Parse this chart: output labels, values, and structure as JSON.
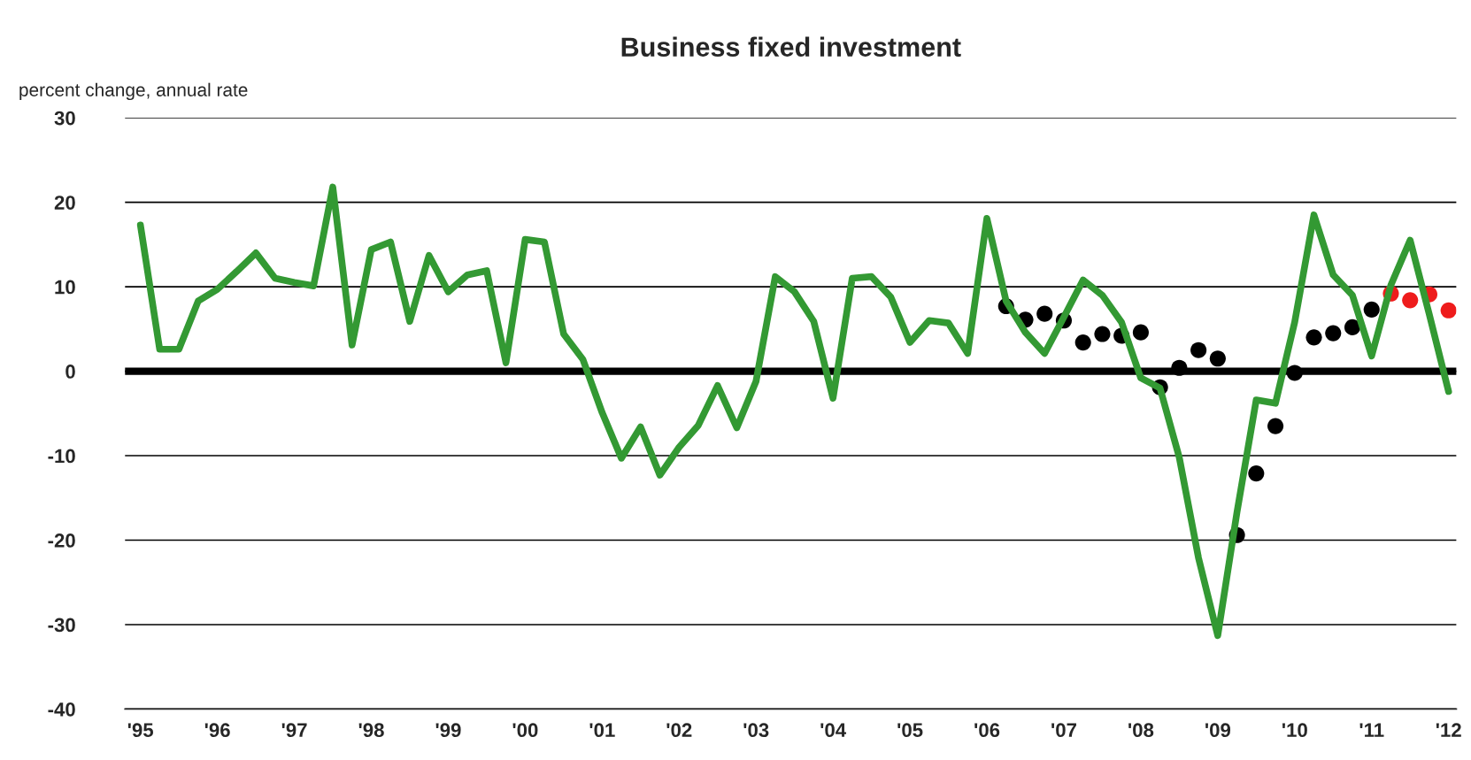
{
  "chart_data": {
    "type": "line",
    "title": "Business fixed investment",
    "ylabel": "percent change, annual rate",
    "x": [
      1995,
      1995.25,
      1995.5,
      1995.75,
      1996,
      1996.25,
      1996.5,
      1996.75,
      1997,
      1997.25,
      1997.5,
      1997.75,
      1998,
      1998.25,
      1998.5,
      1998.75,
      1999,
      1999.25,
      1999.5,
      1999.75,
      2000,
      2000.25,
      2000.5,
      2000.75,
      2001,
      2001.25,
      2001.5,
      2001.75,
      2002,
      2002.25,
      2002.5,
      2002.75,
      2003,
      2003.25,
      2003.5,
      2003.75,
      2004,
      2004.25,
      2004.5,
      2004.75,
      2005,
      2005.25,
      2005.5,
      2005.75,
      2006,
      2006.25,
      2006.5,
      2006.75,
      2007,
      2007.25,
      2007.5,
      2007.75,
      2008,
      2008.25,
      2008.5,
      2008.75,
      2009,
      2009.25,
      2009.5,
      2009.75,
      2010,
      2010.25,
      2010.5,
      2010.75,
      2011,
      2011.25,
      2011.5,
      2011.75,
      2012
    ],
    "series": [
      {
        "color": "#339933",
        "values": [
          17.3,
          2.6,
          2.6,
          8.3,
          9.7,
          11.8,
          14.0,
          11.0,
          10.5,
          10.1,
          21.8,
          3.1,
          14.4,
          15.3,
          5.9,
          13.7,
          9.4,
          11.4,
          11.9,
          1.0,
          15.6,
          15.3,
          4.4,
          1.4,
          -4.9,
          -10.3,
          -6.6,
          -12.3,
          -9.0,
          -6.4,
          -1.7,
          -6.7,
          -1.2,
          11.2,
          9.4,
          5.9,
          -3.2,
          11.0,
          11.2,
          8.8,
          3.4,
          6.0,
          5.7,
          2.1,
          18.1,
          8.3,
          4.6,
          2.1,
          6.4,
          10.8,
          9.0,
          5.8,
          -0.8,
          -2.0,
          -10.2,
          -22.1,
          -31.3,
          -16.7,
          -3.4,
          -3.8,
          5.8,
          18.5,
          11.4,
          9.0,
          1.8,
          10.2,
          15.5,
          6.7,
          -2.4
        ]
      },
      {
        "type": "scatter",
        "marker": "circle",
        "color": "#000000",
        "x": [
          2006.25,
          2006.5,
          2006.75,
          2007,
          2007.25,
          2007.5,
          2007.75,
          2008,
          2008.25,
          2008.5,
          2008.75,
          2009,
          2009.25,
          2009.5,
          2009.75,
          2010,
          2010.25,
          2010.5,
          2010.75,
          2011
        ],
        "values": [
          7.7,
          6.1,
          6.8,
          6.0,
          3.4,
          4.4,
          4.2,
          4.6,
          -1.9,
          0.4,
          2.5,
          1.5,
          -19.4,
          -12.1,
          -6.5,
          -0.2,
          4.0,
          4.5,
          5.2,
          7.3
        ]
      },
      {
        "type": "scatter",
        "marker": "circle",
        "color": "#ee1c1c",
        "x": [
          2011.25,
          2011.5,
          2011.75,
          2012
        ],
        "values": [
          9.2,
          8.4,
          9.1,
          7.2
        ]
      }
    ],
    "xlim": [
      1994.8,
      2012.1
    ],
    "xticks": [
      {
        "value": 1995,
        "label": "'95"
      },
      {
        "value": 1996,
        "label": "'96"
      },
      {
        "value": 1997,
        "label": "'97"
      },
      {
        "value": 1998,
        "label": "'98"
      },
      {
        "value": 1999,
        "label": "'99"
      },
      {
        "value": 2000,
        "label": "'00"
      },
      {
        "value": 2001,
        "label": "'01"
      },
      {
        "value": 2002,
        "label": "'02"
      },
      {
        "value": 2003,
        "label": "'03"
      },
      {
        "value": 2004,
        "label": "'04"
      },
      {
        "value": 2005,
        "label": "'05"
      },
      {
        "value": 2006,
        "label": "'06"
      },
      {
        "value": 2007,
        "label": "'07"
      },
      {
        "value": 2008,
        "label": "'08"
      },
      {
        "value": 2009,
        "label": "'09"
      },
      {
        "value": 2010,
        "label": "'10"
      },
      {
        "value": 2011,
        "label": "'11"
      },
      {
        "value": 2012,
        "label": "'12"
      }
    ],
    "ylim": [
      -40,
      30
    ],
    "yticks": [
      -40,
      -30,
      -20,
      -10,
      0,
      10,
      20,
      30
    ],
    "grid": "y",
    "legend": false,
    "marker": "none",
    "line_style": "solid",
    "ref_lines": [
      {
        "axis": "y",
        "value": 0,
        "color": "#000000"
      }
    ]
  }
}
